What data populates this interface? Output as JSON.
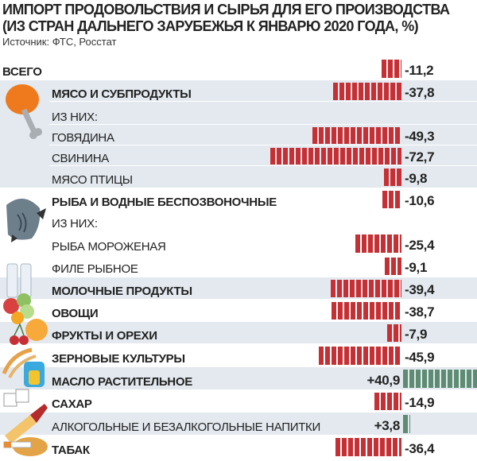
{
  "chart_data": {
    "type": "bar",
    "orientation": "horizontal",
    "title": "ИМПОРТ ПРОДОВОЛЬСТВИЯ И СЫРЬЯ ДЛЯ ЕГО ПРОИЗВОДСТВА (ИЗ СТРАН ДАЛЬНЕГО ЗАРУБЕЖЬЯ К ЯНВАРЮ 2020 ГОДА, %)",
    "title_lines": [
      "ИМПОРТ ПРОДОВОЛЬСТВИЯ И СЫРЬЯ ДЛЯ ЕГО ПРОИЗВОДСТВА",
      "(ИЗ СТРАН ДАЛЬНЕГО ЗАРУБЕЖЬЯ К ЯНВАРЮ 2020 ГОДА, %)"
    ],
    "source": "Источник: ФТС, Росстат",
    "xlim": [
      -72.7,
      40.9
    ],
    "colors": {
      "negative": "#c62f33",
      "positive": "#5e8c73",
      "shaded_row": "#e3e9ef"
    },
    "rows": [
      {
        "label": "ВСЕГО",
        "value": -11.2,
        "display": "-11,2",
        "bold": true,
        "total": true
      },
      {
        "label": "МЯСО И СУБПРОДУКТЫ",
        "value": -37.8,
        "display": "-37,8",
        "bold": true,
        "shaded": true,
        "icon": "drumstick-icon"
      },
      {
        "label": "ИЗ НИХ:",
        "value": null,
        "display": "",
        "shaded": true
      },
      {
        "label": "ГОВЯДИНА",
        "value": -49.3,
        "display": "-49,3",
        "shaded": true
      },
      {
        "label": "СВИНИНА",
        "value": -72.7,
        "display": "-72,7",
        "shaded": true
      },
      {
        "label": "МЯСО ПТИЦЫ",
        "value": -9.8,
        "display": "-9,8",
        "shaded": true
      },
      {
        "label": "РЫБА И ВОДНЫЕ БЕСПОЗВОНОЧНЫЕ",
        "value": -10.6,
        "display": "-10,6",
        "bold": true,
        "icon": "fish-icon"
      },
      {
        "label": "ИЗ НИХ:",
        "value": null,
        "display": ""
      },
      {
        "label": "РЫБА МОРОЖЕНАЯ",
        "value": -25.4,
        "display": "-25,4"
      },
      {
        "label": "ФИЛЕ РЫБНОЕ",
        "value": -9.1,
        "display": "-9,1"
      },
      {
        "label": "МОЛОЧНЫЕ ПРОДУКТЫ",
        "value": -39.4,
        "display": "-39,4",
        "bold": true,
        "shaded": true,
        "icon": "milk-bottles-icon"
      },
      {
        "label": "ОВОЩИ",
        "value": -38.7,
        "display": "-38,7",
        "bold": true,
        "icon": "vegetables-icon"
      },
      {
        "label": "ФРУКТЫ И ОРЕХИ",
        "value": -7.9,
        "display": "-7,9",
        "bold": true,
        "shaded": true,
        "icon": "fruit-icon"
      },
      {
        "label": "ЗЕРНОВЫЕ КУЛЬТУРЫ",
        "value": -45.9,
        "display": "-45,9",
        "bold": true,
        "icon": "wheat-icon"
      },
      {
        "label": "МАСЛО РАСТИТЕЛЬНОЕ",
        "value": 40.9,
        "display": "+40,9",
        "bold": true,
        "shaded": true,
        "icon": "oil-jug-icon"
      },
      {
        "label": "САХАР",
        "value": -14.9,
        "display": "-14,9",
        "bold": true,
        "icon": "sugar-cubes-icon"
      },
      {
        "label": "АЛКОГОЛЬНЫЕ И БЕЗАЛКОГОЛЬНЫЕ НАПИТКИ",
        "value": 3.8,
        "display": "+3,8",
        "shaded": true,
        "icon": "wine-bottle-icon"
      },
      {
        "label": "ТАБАК",
        "value": -36.4,
        "display": "-36,4",
        "bold": true,
        "icon": "tobacco-icon"
      }
    ]
  }
}
